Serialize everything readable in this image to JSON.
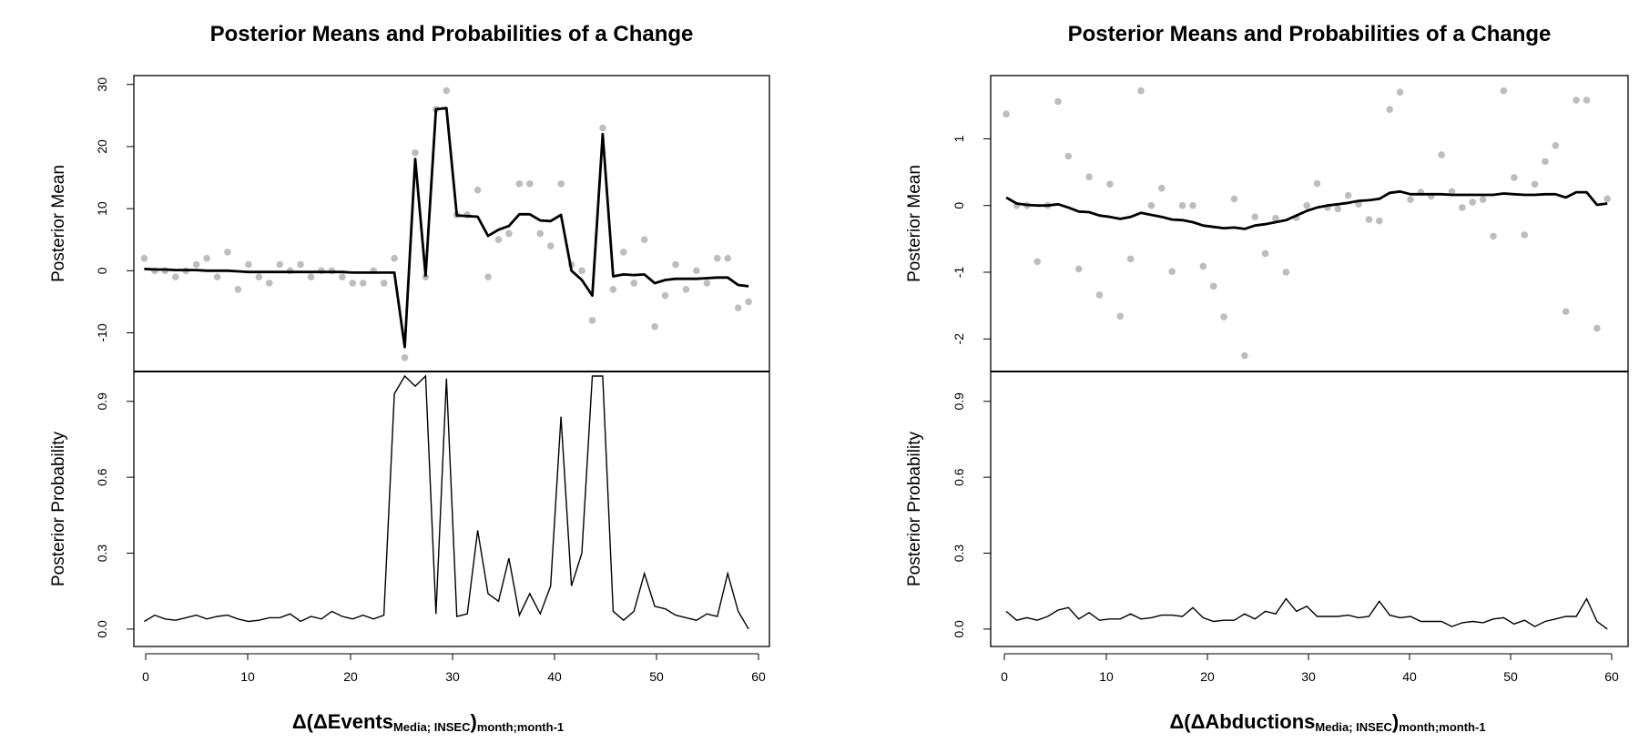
{
  "chart_data": [
    {
      "type": "line",
      "title": "Posterior Means and Probabilities of a Change",
      "xlabel_prefix": "Δ(ΔEvents",
      "xlabel_sub1": "Media; INSEC",
      "xlabel_paren": ")",
      "xlabel_sub2": "month;month-1",
      "xlim": [
        0,
        61
      ],
      "xticks": [
        "0",
        "10",
        "20",
        "30",
        "40",
        "50",
        "60"
      ],
      "mean_panel": {
        "ylabel": "Posterior Mean",
        "ylim": [
          -15.5,
          30.7
        ],
        "yticks": [
          "-10",
          "0",
          "10",
          "20",
          "30"
        ],
        "x": [
          1,
          2,
          3,
          4,
          5,
          6,
          7,
          8,
          9,
          10,
          11,
          12,
          13,
          14,
          15,
          16,
          17,
          18,
          19,
          20,
          21,
          22,
          23,
          24,
          25,
          26,
          27,
          28,
          29,
          30,
          31,
          32,
          33,
          34,
          35,
          36,
          37,
          38,
          39,
          40,
          41,
          42,
          43,
          44,
          45,
          46,
          47,
          48,
          49,
          50,
          51,
          52,
          53,
          54,
          55,
          56,
          57,
          58,
          59
        ],
        "observed": [
          2,
          0,
          0,
          -1,
          0,
          1,
          2,
          -1,
          3,
          -3,
          1,
          -1,
          -2,
          1,
          0,
          1,
          -1,
          0,
          0,
          -1,
          -2,
          -2,
          0,
          -2,
          2,
          -14,
          19,
          -1,
          26,
          29,
          9,
          9,
          13,
          -1,
          5,
          6,
          14,
          14,
          6,
          4,
          14,
          1,
          0,
          -8,
          23,
          -3,
          3,
          -2,
          5,
          -9,
          -4,
          1,
          -3,
          0,
          -2,
          2,
          2,
          -6,
          -5
        ],
        "posterior_mean": [
          0.3,
          0.2,
          0.2,
          0.1,
          0.1,
          0.1,
          0,
          0,
          0,
          -0.1,
          -0.2,
          -0.2,
          -0.2,
          -0.2,
          -0.2,
          -0.2,
          -0.2,
          -0.2,
          -0.2,
          -0.2,
          -0.3,
          -0.3,
          -0.3,
          -0.3,
          -0.3,
          -12.3,
          18,
          -0.8,
          26,
          26.2,
          8.9,
          8.8,
          8.7,
          5.6,
          6.6,
          7.2,
          9.1,
          9.1,
          8.1,
          8,
          9,
          0,
          -1.5,
          -4,
          22,
          -0.9,
          -0.6,
          -0.7,
          -0.6,
          -2,
          -1.5,
          -1.3,
          -1.3,
          -1.3,
          -1.2,
          -1.1,
          -1.1,
          -2.3,
          -2.5
        ]
      },
      "prob_panel": {
        "ylabel": "Posterior Probability",
        "ylim": [
          -0.04,
          1.0
        ],
        "yticks": [
          "0.0",
          "0.3",
          "0.6",
          "0.9"
        ],
        "x": [
          1,
          2,
          3,
          4,
          5,
          6,
          7,
          8,
          9,
          10,
          11,
          12,
          13,
          14,
          15,
          16,
          17,
          18,
          19,
          20,
          21,
          22,
          23,
          24,
          25,
          26,
          27,
          28,
          29,
          30,
          31,
          32,
          33,
          34,
          35,
          36,
          37,
          38,
          39,
          40,
          41,
          42,
          43,
          44,
          45,
          46,
          47,
          48,
          49,
          50,
          51,
          52,
          53,
          54,
          55,
          56,
          57,
          58,
          59
        ],
        "values": [
          0.03,
          0.055,
          0.04,
          0.035,
          0.045,
          0.055,
          0.04,
          0.05,
          0.055,
          0.04,
          0.03,
          0.035,
          0.045,
          0.045,
          0.06,
          0.03,
          0.05,
          0.04,
          0.07,
          0.05,
          0.04,
          0.055,
          0.04,
          0.055,
          0.93,
          1.0,
          0.96,
          1.0,
          0.06,
          0.99,
          0.05,
          0.06,
          0.39,
          0.14,
          0.11,
          0.28,
          0.055,
          0.14,
          0.06,
          0.17,
          0.84,
          0.17,
          0.3,
          1.0,
          1.0,
          0.07,
          0.035,
          0.07,
          0.22,
          0.09,
          0.08,
          0.055,
          0.045,
          0.035,
          0.06,
          0.05,
          0.22,
          0.07,
          0.0
        ]
      }
    },
    {
      "type": "line",
      "title": "Posterior Means and Probabilities of a Change",
      "xlabel_prefix": "Δ(ΔAbductions",
      "xlabel_sub1": "Media; INSEC",
      "xlabel_paren": ")",
      "xlabel_sub2": "month;month-1",
      "xlim": [
        -0.5,
        61
      ],
      "xticks": [
        "0",
        "10",
        "20",
        "30",
        "40",
        "50",
        "60"
      ],
      "mean_panel": {
        "ylabel": "Posterior Mean",
        "ylim": [
          -2.42,
          1.88
        ],
        "yticks": [
          "-2",
          "-1",
          "0",
          "1"
        ],
        "x": [
          1,
          2,
          3,
          4,
          5,
          6,
          7,
          8,
          9,
          10,
          11,
          12,
          13,
          14,
          15,
          16,
          17,
          18,
          19,
          20,
          21,
          22,
          23,
          24,
          25,
          26,
          27,
          28,
          29,
          30,
          31,
          32,
          33,
          34,
          35,
          36,
          37,
          38,
          39,
          40,
          41,
          42,
          43,
          44,
          45,
          46,
          47,
          48,
          49,
          50,
          51,
          52,
          53,
          54,
          55,
          56,
          57,
          58,
          59
        ],
        "observed": [
          1.37,
          0,
          0,
          -0.84,
          0,
          1.56,
          0.74,
          -0.95,
          0.43,
          -1.34,
          0.32,
          -1.66,
          -0.8,
          1.72,
          0,
          0.26,
          -0.99,
          0,
          0,
          -0.91,
          -1.21,
          -1.67,
          0.1,
          -2.25,
          -0.17,
          -0.72,
          -0.19,
          -1.0,
          -0.18,
          0,
          0.33,
          -0.03,
          -0.05,
          0.15,
          0.02,
          -0.21,
          -0.23,
          1.44,
          1.7,
          0.09,
          0.2,
          0.14,
          0.76,
          0.21,
          -0.03,
          0.05,
          0.09,
          -0.46,
          1.72,
          0.42,
          -0.44,
          0.32,
          0.66,
          0.9,
          -1.59,
          1.58,
          1.58,
          -1.84,
          0.1
        ],
        "posterior_mean": [
          0.12,
          0.03,
          0.01,
          0,
          0,
          0.02,
          -0.03,
          -0.09,
          -0.1,
          -0.15,
          -0.17,
          -0.2,
          -0.17,
          -0.11,
          -0.14,
          -0.17,
          -0.21,
          -0.22,
          -0.25,
          -0.3,
          -0.32,
          -0.34,
          -0.33,
          -0.35,
          -0.3,
          -0.28,
          -0.25,
          -0.22,
          -0.15,
          -0.08,
          -0.03,
          0,
          0.02,
          0.04,
          0.07,
          0.08,
          0.1,
          0.19,
          0.21,
          0.17,
          0.17,
          0.17,
          0.17,
          0.16,
          0.16,
          0.16,
          0.16,
          0.16,
          0.18,
          0.17,
          0.16,
          0.16,
          0.17,
          0.17,
          0.12,
          0.2,
          0.2,
          0.01,
          0.03
        ]
      },
      "prob_panel": {
        "ylabel": "Posterior Probability",
        "ylim": [
          -0.04,
          1.0
        ],
        "yticks": [
          "0.0",
          "0.3",
          "0.6",
          "0.9"
        ],
        "x": [
          1,
          2,
          3,
          4,
          5,
          6,
          7,
          8,
          9,
          10,
          11,
          12,
          13,
          14,
          15,
          16,
          17,
          18,
          19,
          20,
          21,
          22,
          23,
          24,
          25,
          26,
          27,
          28,
          29,
          30,
          31,
          32,
          33,
          34,
          35,
          36,
          37,
          38,
          39,
          40,
          41,
          42,
          43,
          44,
          45,
          46,
          47,
          48,
          49,
          50,
          51,
          52,
          53,
          54,
          55,
          56,
          57,
          58,
          59
        ],
        "values": [
          0.07,
          0.035,
          0.045,
          0.035,
          0.05,
          0.075,
          0.085,
          0.04,
          0.065,
          0.035,
          0.04,
          0.04,
          0.06,
          0.04,
          0.045,
          0.055,
          0.055,
          0.05,
          0.085,
          0.045,
          0.03,
          0.035,
          0.035,
          0.06,
          0.04,
          0.07,
          0.06,
          0.12,
          0.07,
          0.09,
          0.05,
          0.05,
          0.05,
          0.055,
          0.045,
          0.05,
          0.11,
          0.055,
          0.045,
          0.05,
          0.03,
          0.03,
          0.03,
          0.01,
          0.025,
          0.03,
          0.025,
          0.04,
          0.045,
          0.02,
          0.035,
          0.01,
          0.03,
          0.04,
          0.05,
          0.05,
          0.12,
          0.03,
          0.0
        ]
      }
    }
  ]
}
